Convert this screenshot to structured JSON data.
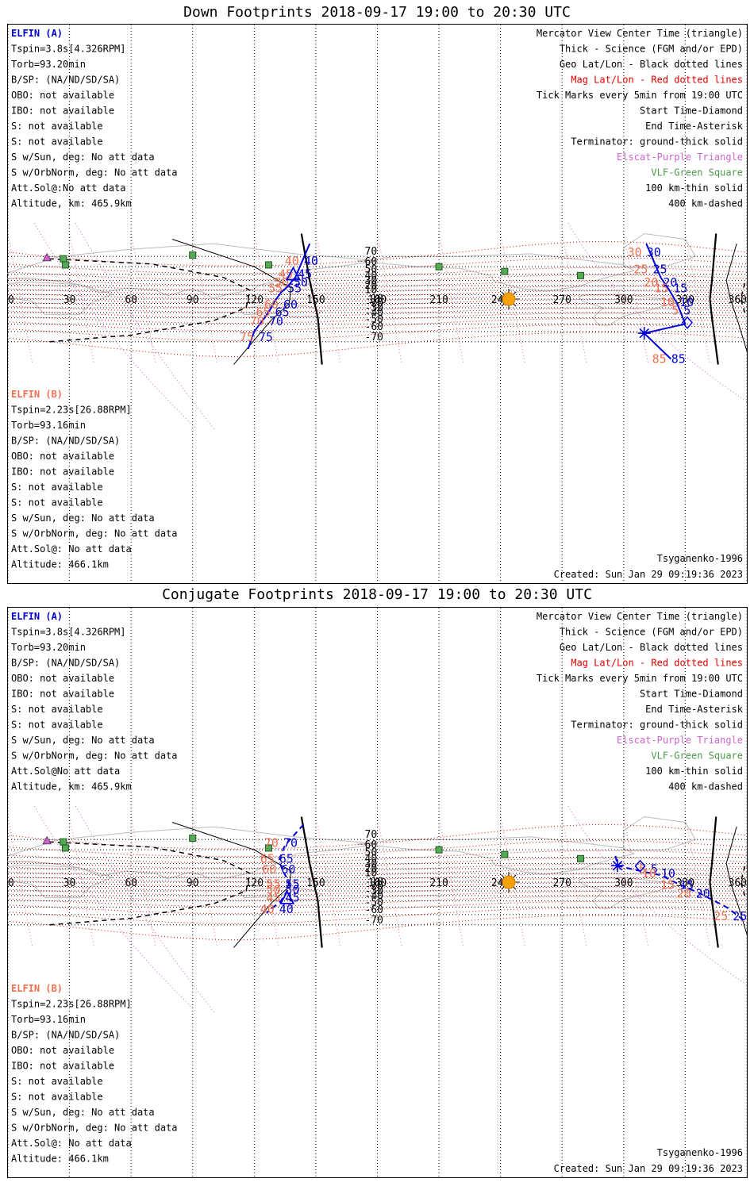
{
  "panels": [
    {
      "title": "Down Footprints 2018-09-17 19:00 to 20:30 UTC",
      "elfin_a": {
        "header": "ELFIN (A)",
        "lines": [
          "Tspin=3.8s[4.326RPM]",
          "Torb=93.20min",
          "B/SP: (NA/ND/SD/SA)",
          "OBO: not available",
          "IBO: not available",
          "S: not available",
          "S: not available",
          "S w/Sun, deg: No att data",
          "S w/OrbNorm, deg: No att data",
          "Att.Sol@:No att data",
          "Altitude, km: 465.9km"
        ]
      },
      "elfin_b": {
        "header": "ELFIN (B)",
        "lines": [
          "Tspin=2.23s[26.88RPM]",
          "Torb=93.16min",
          "B/SP: (NA/ND/SD/SA)",
          "OBO: not available",
          "IBO: not available",
          "S: not available",
          "S: not available",
          "S w/Sun, deg: No att data",
          "S w/OrbNorm, deg: No att data",
          "Att.Sol@: No att data",
          "Altitude: 466.1km"
        ]
      },
      "legend": [
        {
          "text": "Mercator View Center Time (triangle)",
          "color": "#000000"
        },
        {
          "text": "Thick - Science (FGM and/or EPD)",
          "color": "#000000"
        },
        {
          "text": "Geo Lat/Lon - Black dotted lines",
          "color": "#000000"
        },
        {
          "text": "Mag Lat/Lon - Red dotted lines",
          "color": "#e00000"
        },
        {
          "text": "Tick Marks every 5min from 19:00 UTC",
          "color": "#000000"
        },
        {
          "text": "Start Time-Diamond",
          "color": "#000000"
        },
        {
          "text": "End Time-Asterisk",
          "color": "#000000"
        },
        {
          "text": "Terminator: ground-thick solid",
          "color": "#000000"
        },
        {
          "text": "Elscat-Purple Triangle",
          "color": "#cc66cc"
        },
        {
          "text": "VLF-Green Square",
          "color": "#4c9a4c"
        },
        {
          "text": "100 km-thin solid",
          "color": "#000000"
        },
        {
          "text": "400 km-dashed",
          "color": "#000000"
        }
      ],
      "footer_left": "Tsyganenko-1996",
      "footer_right": "Created: Sun Jan 29 09:19:36 2023"
    },
    {
      "title": "Conjugate Footprints 2018-09-17 19:00 to 20:30 UTC",
      "elfin_a": {
        "header": "ELFIN (A)",
        "lines": [
          "Tspin=3.8s[4.326RPM]",
          "Torb=93.20min",
          "B/SP: (NA/ND/SD/SA)",
          "OBO: not available",
          "IBO: not available",
          "S: not available",
          "S: not available",
          "S w/Sun, deg: No att data",
          "S w/OrbNorm, deg: No att data",
          "Att.Sol@No att data",
          "Altitude, km: 465.9km"
        ]
      },
      "elfin_b": {
        "header": "ELFIN (B)",
        "lines": [
          "Tspin=2.23s[26.88RPM]",
          "Torb=93.16min",
          "B/SP: (NA/ND/SD/SA)",
          "OBO: not available",
          "IBO: not available",
          "S: not available",
          "S: not available",
          "S w/Sun, deg: No att data",
          "S w/OrbNorm, deg: No att data",
          "Att.Sol@: No att data",
          "Altitude: 466.1km"
        ]
      },
      "legend": [
        {
          "text": "Mercator View Center Time (triangle)",
          "color": "#000000"
        },
        {
          "text": "Thick - Science (FGM and/or EPD)",
          "color": "#000000"
        },
        {
          "text": "Geo Lat/Lon - Black dotted lines",
          "color": "#000000"
        },
        {
          "text": "Mag Lat/Lon - Red dotted lines",
          "color": "#e00000"
        },
        {
          "text": "Tick Marks every 5min from 19:00 UTC",
          "color": "#000000"
        },
        {
          "text": "Start Time-Diamond",
          "color": "#000000"
        },
        {
          "text": "End Time-Asterisk",
          "color": "#000000"
        },
        {
          "text": "Terminator: ground-thick solid",
          "color": "#000000"
        },
        {
          "text": "Elscat-Purple Triangle",
          "color": "#cc66cc"
        },
        {
          "text": "VLF-Green Square",
          "color": "#4c9a4c"
        },
        {
          "text": "100 km-thin solid",
          "color": "#000000"
        },
        {
          "text": "400 km-dashed",
          "color": "#000000"
        }
      ],
      "footer_left": "Tsyganenko-1996",
      "footer_right": "Created: Sun Jan 29 09:19:36 2023"
    }
  ],
  "chart_data": [
    {
      "type": "scatter",
      "title": "Down Footprints 2018-09-17 19:00 to 20:30 UTC",
      "projection": "Mercator",
      "xlim": [
        0,
        360
      ],
      "ylim": [
        -80,
        80
      ],
      "lon_ticks": [
        "0",
        "30",
        "60",
        "90",
        "120",
        "150",
        "180",
        "210",
        "240",
        "270",
        "300",
        "330",
        "360"
      ],
      "lat_ticks": [
        "70",
        "60",
        "50",
        "40",
        "30",
        "20",
        "10",
        "-10",
        "-20",
        "-30",
        "-40",
        "-50",
        "-60",
        "-70"
      ],
      "series": [
        {
          "name": "ELFIN (A)",
          "color": "#0000dd",
          "style": "solid",
          "points": [
            [
              147,
              78
            ],
            [
              140,
              45
            ],
            [
              136,
              27
            ],
            [
              133,
              15
            ],
            [
              130,
              -5
            ],
            [
              128,
              -22
            ],
            [
              125,
              -40
            ],
            [
              120,
              -60
            ],
            [
              117,
              -75
            ]
          ],
          "ticks": [
            {
              "label": "40",
              "lon": 143,
              "lat": 66
            },
            {
              "label": "45",
              "lon": 140,
              "lat": 50
            },
            {
              "label": "50",
              "lon": 138,
              "lat": 36
            },
            {
              "label": "55",
              "lon": 135,
              "lat": 24
            },
            {
              "label": "60",
              "lon": 133,
              "lat": -13
            },
            {
              "label": "65",
              "lon": 129,
              "lat": -29
            },
            {
              "label": "70",
              "lon": 126,
              "lat": -46
            },
            {
              "label": "75",
              "lon": 121,
              "lat": -66
            }
          ]
        },
        {
          "name": "",
          "color": "#0000dd",
          "style": "solid",
          "points": [
            [
              311,
              78
            ],
            [
              318,
              45
            ],
            [
              322,
              22
            ],
            [
              326,
              -10
            ],
            [
              330,
              -50
            ],
            [
              310,
              -62
            ],
            [
              323,
              -80
            ]
          ],
          "ticks": [
            {
              "label": "30",
              "lon": 310,
              "lat": 73
            },
            {
              "label": "25",
              "lon": 313,
              "lat": 57
            },
            {
              "label": "20",
              "lon": 318,
              "lat": 36
            },
            {
              "label": "15",
              "lon": 323,
              "lat": 24
            },
            {
              "label": "10",
              "lon": 326,
              "lat": -7
            },
            {
              "label": "5",
              "lon": 328,
              "lat": -26
            },
            {
              "label": "85",
              "lon": 322,
              "lat": -80
            }
          ]
        }
      ],
      "markers": {
        "center_triangle": {
          "lon": 139,
          "lat": 49
        },
        "start_diamond": {
          "lon": 331,
          "lat": -48
        },
        "end_asterisk": {
          "lon": 310,
          "lat": -62
        },
        "sun": {
          "lon": 244,
          "lat": 0
        },
        "vlf_squares": [
          [
            90,
            71
          ],
          [
            27,
            68
          ],
          [
            28,
            62
          ],
          [
            127,
            62
          ],
          [
            210,
            60
          ],
          [
            242,
            54
          ],
          [
            279,
            48
          ]
        ],
        "elscat_triangles": [
          [
            19,
            69
          ]
        ]
      }
    },
    {
      "type": "scatter",
      "title": "Conjugate Footprints 2018-09-17 19:00 to 20:30 UTC",
      "projection": "Mercator",
      "xlim": [
        0,
        360
      ],
      "ylim": [
        -80,
        80
      ],
      "lon_ticks": [
        "0",
        "30",
        "60",
        "90",
        "120",
        "150",
        "180",
        "210",
        "240",
        "270",
        "300",
        "330",
        "360"
      ],
      "lat_ticks": [
        "70",
        "60",
        "50",
        "40",
        "30",
        "20",
        "10",
        "-10",
        "-20",
        "-30",
        "-40",
        "-50",
        "-60",
        "-70"
      ],
      "series": [
        {
          "name": "ELFIN (A)",
          "color": "#0000dd",
          "style": "dashed",
          "points": [
            [
              144,
              79
            ],
            [
              135,
              65
            ],
            [
              132,
              45
            ],
            [
              134,
              25
            ],
            [
              137,
              0
            ],
            [
              136,
              -20
            ],
            [
              133,
              -40
            ],
            [
              126,
              -58
            ]
          ],
          "ticks": [
            {
              "label": "70",
              "lon": 133,
              "lat": 67
            },
            {
              "label": "65",
              "lon": 131,
              "lat": 48
            },
            {
              "label": "60",
              "lon": 132,
              "lat": 28
            },
            {
              "label": "55",
              "lon": 134,
              "lat": -5
            },
            {
              "label": "50",
              "lon": 134,
              "lat": -17
            },
            {
              "label": "45",
              "lon": 134,
              "lat": -34
            },
            {
              "label": "40",
              "lon": 131,
              "lat": -53
            }
          ]
        },
        {
          "name": "",
          "color": "#0000dd",
          "style": "dashed",
          "points": [
            [
              296,
              52
            ],
            [
              297,
              36
            ],
            [
              305,
              28
            ],
            [
              318,
              16
            ],
            [
              327,
              -5
            ],
            [
              337,
              -25
            ],
            [
              350,
              -50
            ],
            [
              360,
              -68
            ]
          ],
          "ticks": [
            {
              "label": "5",
              "lon": 312,
              "lat": 29
            },
            {
              "label": "10",
              "lon": 317,
              "lat": 20
            },
            {
              "label": "15",
              "lon": 326,
              "lat": -6
            },
            {
              "label": "20",
              "lon": 334,
              "lat": -26
            },
            {
              "label": "25",
              "lon": 352,
              "lat": -62
            }
          ]
        }
      ],
      "markers": {
        "center_triangle": {
          "lon": 136,
          "lat": -36
        },
        "start_diamond": {
          "lon": 308,
          "lat": 35
        },
        "end_asterisk": {
          "lon": 297,
          "lat": 36
        },
        "sun": {
          "lon": 244,
          "lat": 0
        },
        "vlf_squares": [
          [
            90,
            71
          ],
          [
            27,
            68
          ],
          [
            28,
            62
          ],
          [
            127,
            62
          ],
          [
            210,
            60
          ],
          [
            242,
            54
          ],
          [
            279,
            48
          ]
        ],
        "elscat_triangles": [
          [
            19,
            69
          ]
        ]
      }
    }
  ]
}
